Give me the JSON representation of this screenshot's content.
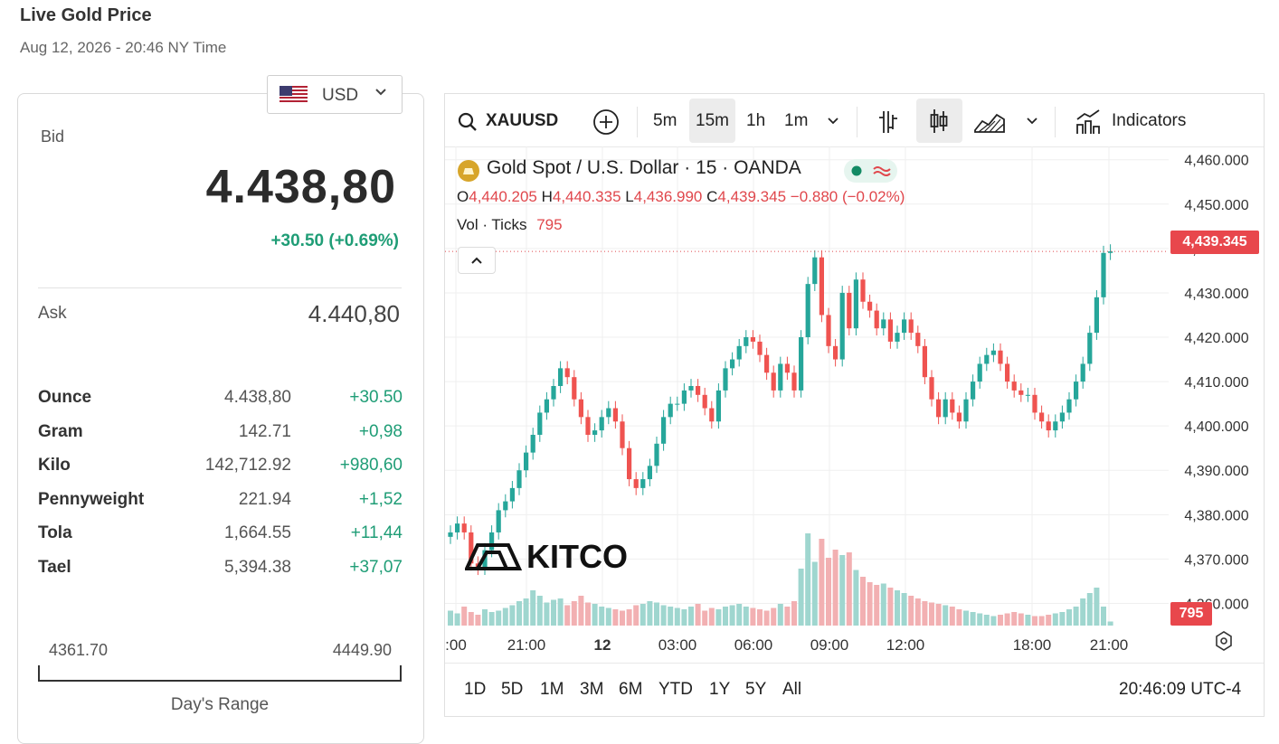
{
  "page": {
    "title": "Live Gold Price",
    "subtitle": "Aug 12, 2026 - 20:46 NY Time"
  },
  "currency": {
    "selected": "USD",
    "icon": "us-flag-icon"
  },
  "quote": {
    "bid_label": "Bid",
    "bid": "4.438,80",
    "change": "+30.50 (+0.69%)",
    "ask_label": "Ask",
    "ask": "4.440,80"
  },
  "units": [
    {
      "name": "Ounce",
      "value": "4.438,80",
      "change": "+30.50"
    },
    {
      "name": "Gram",
      "value": "142.71",
      "change": "+0,98"
    },
    {
      "name": "Kilo",
      "value": "142,712.92",
      "change": "+980,60"
    },
    {
      "name": "Pennyweight",
      "value": "221.94",
      "change": "+1,52"
    },
    {
      "name": "Tola",
      "value": "1,664.55",
      "change": "+11,44"
    },
    {
      "name": "Tael",
      "value": "5,394.38",
      "change": "+37,07"
    }
  ],
  "day_range": {
    "low": "4361.70",
    "high": "4449.90",
    "label": "Day's Range"
  },
  "toolbar": {
    "symbol": "XAUUSD",
    "intervals": [
      "5m",
      "15m",
      "1h",
      "1m"
    ],
    "active_interval": "15m",
    "indicators_label": "Indicators"
  },
  "legend": {
    "title": "Gold Spot / U.S. Dollar · 15 · OANDA",
    "o_label": "O",
    "o": "4,440.205",
    "h_label": "H",
    "h": "4,440.335",
    "l_label": "L",
    "l": "4,436.990",
    "c_label": "C",
    "c": "4,439.345",
    "change": "−0.880 (−0.02%)",
    "vol_label": "Vol · Ticks",
    "vol": "795"
  },
  "watermark": "KITCO",
  "last_price_tag": "4,439.345",
  "last_volume_tag": "795",
  "periods": [
    "1D",
    "5D",
    "1M",
    "3M",
    "6M",
    "YTD",
    "1Y",
    "5Y",
    "All"
  ],
  "clock": "20:46:09 UTC-4",
  "colors": {
    "up": "#26a69a",
    "down": "#ef5350",
    "accent": "#1f9d76"
  },
  "chart_data": {
    "type": "candlestick",
    "title": "Gold Spot / U.S. Dollar · 15 · OANDA",
    "y_ticks": [
      "4,460.000",
      "4,450.000",
      "4,440.000",
      "4,430.000",
      "4,420.000",
      "4,410.000",
      "4,400.000",
      "4,390.000",
      "4,380.000",
      "4,370.000",
      "4,360.000"
    ],
    "y_tick_values": [
      4460,
      4450,
      4440,
      4430,
      4420,
      4410,
      4400,
      4390,
      4380,
      4370,
      4360
    ],
    "x_ticks": [
      ":00",
      "21:00",
      "12",
      "03:00",
      "06:00",
      "09:00",
      "12:00",
      "18:00",
      "21:00"
    ],
    "ylim": [
      4355,
      4463
    ],
    "grid": true,
    "closes": [
      4376,
      4378,
      4376,
      4369,
      4368,
      4372,
      4376,
      4381,
      4383,
      4386,
      4390,
      4394,
      4398,
      4403,
      4406,
      4409,
      4413,
      4411,
      4406,
      4402,
      4398,
      4399,
      4402,
      4404,
      4401,
      4395,
      4388,
      4386,
      4388,
      4391,
      4396,
      4402,
      4405,
      4405,
      4408,
      4409,
      4407,
      4404,
      4401,
      4408,
      4413,
      4415,
      4418,
      4420,
      4419,
      4416,
      4412,
      4408,
      4414,
      4412,
      4408,
      4420,
      4432,
      4438,
      4425,
      4418,
      4415,
      4430,
      4422,
      4433,
      4428,
      4426,
      4422,
      4424,
      4419,
      4421,
      4424,
      4421,
      4418,
      4411,
      4406,
      4402,
      4406,
      4403,
      4401,
      4406,
      4410,
      4414,
      4416,
      4417,
      4414,
      4410,
      4408,
      4407,
      4407,
      4403,
      4401,
      4399,
      4401,
      4403,
      4406,
      4410,
      4414,
      4421,
      4429,
      4439,
      4439.345
    ],
    "volumes": [
      11,
      9,
      14,
      10,
      8,
      12,
      10,
      11,
      13,
      15,
      18,
      20,
      26,
      22,
      17,
      19,
      20,
      15,
      18,
      22,
      17,
      16,
      14,
      13,
      12,
      11,
      12,
      15,
      16,
      18,
      17,
      15,
      14,
      13,
      12,
      14,
      16,
      11,
      13,
      12,
      14,
      15,
      16,
      14,
      13,
      12,
      11,
      13,
      16,
      14,
      18,
      42,
      68,
      47,
      64,
      50,
      56,
      52,
      54,
      41,
      36,
      32,
      30,
      31,
      28,
      26,
      24,
      22,
      20,
      18,
      17,
      16,
      15,
      14,
      12,
      11,
      10,
      9,
      8,
      7,
      8,
      9,
      10,
      9,
      8,
      7,
      7,
      8,
      9,
      10,
      12,
      14,
      20,
      24,
      28,
      14,
      3
    ]
  }
}
